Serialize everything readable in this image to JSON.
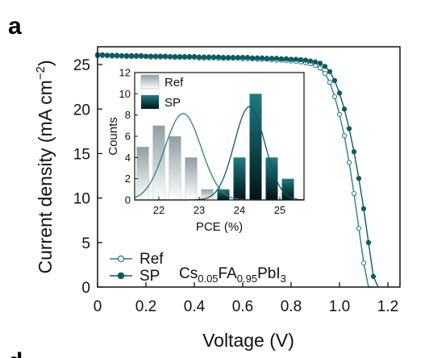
{
  "panel_labels": {
    "top": "a",
    "bottom": "d"
  },
  "colors": {
    "ref": "#2f7f84",
    "sp": "#0e5a62",
    "axis": "#111111"
  },
  "chart_data": [
    {
      "type": "line",
      "xlabel": "Voltage (V)",
      "ylabel_main": "Current density (mA cm",
      "ylabel_sup": "−2",
      "ylabel_close": ")",
      "xlim": [
        0,
        1.25
      ],
      "ylim": [
        0,
        27
      ],
      "xticks": [
        0,
        0.2,
        0.4,
        0.6,
        0.8,
        1.0,
        1.2
      ],
      "xtick_labels": [
        "0",
        "0.2",
        "0.4",
        "0.6",
        "0.8",
        "1.0",
        "1.2"
      ],
      "yticks": [
        0,
        5,
        10,
        15,
        20,
        25
      ],
      "ytick_labels": [
        "0",
        "5",
        "10",
        "15",
        "20",
        "25"
      ],
      "legend_position": "bottom-left",
      "annotation": {
        "a": "Cs",
        "a_sub": "0.05",
        "b": "FA",
        "b_sub": "0.95",
        "c": "PbI",
        "c_sub": "3"
      },
      "series": [
        {
          "name": "Ref",
          "marker": "open-circle",
          "x": [
            0,
            0.02,
            0.04,
            0.06,
            0.08,
            0.1,
            0.12,
            0.14,
            0.16,
            0.18,
            0.2,
            0.22,
            0.24,
            0.26,
            0.28,
            0.3,
            0.32,
            0.34,
            0.36,
            0.38,
            0.4,
            0.42,
            0.44,
            0.46,
            0.48,
            0.5,
            0.52,
            0.54,
            0.56,
            0.58,
            0.6,
            0.62,
            0.64,
            0.66,
            0.68,
            0.7,
            0.72,
            0.74,
            0.76,
            0.78,
            0.8,
            0.82,
            0.84,
            0.86,
            0.88,
            0.9,
            0.92,
            0.94,
            0.96,
            0.98,
            1.0,
            1.02,
            1.04,
            1.06,
            1.08,
            1.1,
            1.12,
            1.14
          ],
          "y": [
            26.0,
            26.0,
            26.0,
            25.95,
            25.95,
            25.95,
            25.9,
            25.9,
            25.9,
            25.9,
            25.9,
            25.85,
            25.85,
            25.85,
            25.85,
            25.85,
            25.8,
            25.8,
            25.8,
            25.8,
            25.8,
            25.75,
            25.75,
            25.75,
            25.75,
            25.7,
            25.7,
            25.7,
            25.7,
            25.7,
            25.65,
            25.65,
            25.65,
            25.6,
            25.6,
            25.6,
            25.55,
            25.5,
            25.5,
            25.45,
            25.4,
            25.35,
            25.3,
            25.2,
            25.1,
            24.9,
            24.6,
            24.0,
            23.0,
            21.4,
            19.4,
            17.0,
            14.0,
            10.5,
            6.6,
            2.7,
            0.0,
            0.0
          ]
        },
        {
          "name": "SP",
          "marker": "filled-circle",
          "x": [
            0,
            0.02,
            0.04,
            0.06,
            0.08,
            0.1,
            0.12,
            0.14,
            0.16,
            0.18,
            0.2,
            0.22,
            0.24,
            0.26,
            0.28,
            0.3,
            0.32,
            0.34,
            0.36,
            0.38,
            0.4,
            0.42,
            0.44,
            0.46,
            0.48,
            0.5,
            0.52,
            0.54,
            0.56,
            0.58,
            0.6,
            0.62,
            0.64,
            0.66,
            0.68,
            0.7,
            0.72,
            0.74,
            0.76,
            0.78,
            0.8,
            0.82,
            0.84,
            0.86,
            0.88,
            0.9,
            0.92,
            0.94,
            0.96,
            0.98,
            1.0,
            1.02,
            1.04,
            1.06,
            1.08,
            1.1,
            1.12,
            1.14,
            1.16
          ],
          "y": [
            26.1,
            26.1,
            26.05,
            26.05,
            26.05,
            26.0,
            26.0,
            26.0,
            26.0,
            26.0,
            25.95,
            25.95,
            25.95,
            25.95,
            25.95,
            25.9,
            25.9,
            25.9,
            25.9,
            25.9,
            25.9,
            25.85,
            25.85,
            25.85,
            25.85,
            25.85,
            25.8,
            25.8,
            25.8,
            25.8,
            25.8,
            25.8,
            25.75,
            25.75,
            25.75,
            25.7,
            25.7,
            25.7,
            25.65,
            25.65,
            25.6,
            25.6,
            25.55,
            25.5,
            25.4,
            25.3,
            25.15,
            24.8,
            24.2,
            23.2,
            21.8,
            20.0,
            17.8,
            15.2,
            12.2,
            8.8,
            5.0,
            1.2,
            0.0
          ]
        }
      ]
    },
    {
      "type": "bar",
      "role": "inset",
      "xlabel": "PCE (%)",
      "ylabel": "Counts",
      "xlim": [
        21.4,
        25.6
      ],
      "ylim": [
        0,
        12
      ],
      "xticks": [
        22,
        23,
        24,
        25
      ],
      "xtick_labels": [
        "22",
        "23",
        "24",
        "25"
      ],
      "yticks": [
        0,
        2,
        4,
        6,
        8,
        10,
        12
      ],
      "ytick_labels": [
        "0",
        "2",
        "4",
        "6",
        "8",
        "10",
        "12"
      ],
      "bin_width": 0.3,
      "legend_position": "top-left",
      "series": [
        {
          "name": "Ref",
          "bin_centers": [
            21.6,
            22.0,
            22.4,
            22.8,
            23.2
          ],
          "counts": [
            5,
            7,
            6,
            4,
            1
          ],
          "fit_mean": 22.6,
          "fit_sd": 0.45
        },
        {
          "name": "SP",
          "bin_centers": [
            23.6,
            24.0,
            24.4,
            24.8,
            25.2
          ],
          "counts": [
            1,
            4,
            10,
            4,
            2
          ],
          "fit_mean": 24.25,
          "fit_sd": 0.38
        }
      ]
    }
  ]
}
